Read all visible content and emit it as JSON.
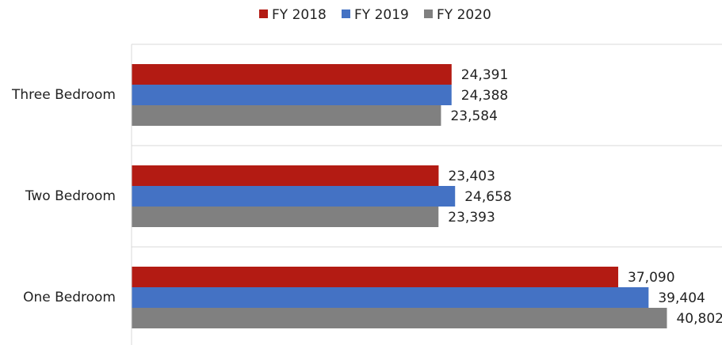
{
  "chart_data": {
    "type": "hbar",
    "categories": [
      "Three Bedroom",
      "Two Bedroom",
      "One Bedroom"
    ],
    "series": [
      {
        "name": "FY 2018",
        "color": "#b31b13",
        "values": [
          24391,
          23403,
          37090
        ],
        "value_labels": [
          "24,391",
          "23,403",
          "37,090"
        ]
      },
      {
        "name": "FY 2019",
        "color": "#4472c4",
        "values": [
          24388,
          24658,
          39404
        ],
        "value_labels": [
          "24,388",
          "24,658",
          "39,404"
        ]
      },
      {
        "name": "FY 2020",
        "color": "#808080",
        "values": [
          23584,
          23393,
          40802
        ],
        "value_labels": [
          "23,584",
          "23,393",
          "40,802"
        ]
      }
    ],
    "xlim": [
      0,
      45000
    ]
  }
}
